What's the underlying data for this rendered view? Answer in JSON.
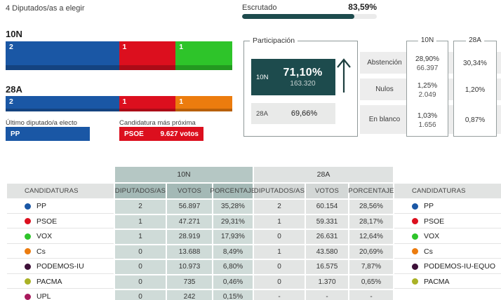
{
  "header": {
    "seats_note": "4 Diputados/as a elegir",
    "escrutado": {
      "label": "Escrutado",
      "value": "83,59%",
      "pct": 83.59,
      "fill_color": "#1d4b4d"
    }
  },
  "seat_bars": {
    "n10": {
      "title": "10N",
      "segments": [
        {
          "party": "PP",
          "seats": "2",
          "color": "#1a57a5",
          "width_pct": 50
        },
        {
          "party": "PSOE",
          "seats": "1",
          "color": "#dc0f1e",
          "width_pct": 25
        },
        {
          "party": "VOX",
          "seats": "1",
          "color": "#2ec42a",
          "width_pct": 25
        }
      ]
    },
    "a28": {
      "title": "28A",
      "segments": [
        {
          "party": "PP",
          "seats": "2",
          "color": "#1a57a5",
          "width_pct": 50
        },
        {
          "party": "PSOE",
          "seats": "1",
          "color": "#dc0f1e",
          "width_pct": 25
        },
        {
          "party": "Cs",
          "seats": "1",
          "color": "#ec7c0e",
          "width_pct": 25
        }
      ]
    }
  },
  "last_elected": {
    "label": "Último diputado/a electo",
    "party": "PP",
    "color": "#1a57a5"
  },
  "closest": {
    "label": "Candidatura más próxima",
    "party": "PSOE",
    "votes": "9.627 votos",
    "color": "#dc0f1e"
  },
  "participation": {
    "title": "Participación",
    "n10": {
      "label": "10N",
      "pct": "71,10%",
      "count": "163.320",
      "box_color": "#1d4b4d"
    },
    "a28": {
      "label": "28A",
      "pct": "69,66%"
    },
    "trend_icon": "up-arrow"
  },
  "stats": {
    "n10_col": "10N",
    "a28_col": "28A",
    "rows": [
      {
        "label": "Abstención",
        "n10_pct": "28,90%",
        "n10_count": "66.397",
        "a28_pct": "30,34%"
      },
      {
        "label": "Nulos",
        "n10_pct": "1,25%",
        "n10_count": "2.049",
        "a28_pct": "1,20%"
      },
      {
        "label": "En blanco",
        "n10_pct": "1,03%",
        "n10_count": "1.656",
        "a28_pct": "0,87%"
      }
    ]
  },
  "table": {
    "cand_header_left": "CANDIDATURAS",
    "cand_header_right": "CANDIDATURAS",
    "group_n10": "10N",
    "group_a28": "28A",
    "cols": {
      "diputados": "DIPUTADOS/AS",
      "votos": "VOTOS",
      "porcentaje": "PORCENTAJE"
    },
    "rows": [
      {
        "name": "PP",
        "color": "#1a57a5",
        "n10_dip": "2",
        "n10_votos": "56.897",
        "n10_pct": "35,28%",
        "a28_dip": "2",
        "a28_votos": "60.154",
        "a28_pct": "28,56%",
        "name_right": "PP",
        "color_right": "#1a57a5"
      },
      {
        "name": "PSOE",
        "color": "#dc0f1e",
        "n10_dip": "1",
        "n10_votos": "47.271",
        "n10_pct": "29,31%",
        "a28_dip": "1",
        "a28_votos": "59.331",
        "a28_pct": "28,17%",
        "name_right": "PSOE",
        "color_right": "#dc0f1e"
      },
      {
        "name": "VOX",
        "color": "#2ec42a",
        "n10_dip": "1",
        "n10_votos": "28.919",
        "n10_pct": "17,93%",
        "a28_dip": "0",
        "a28_votos": "26.631",
        "a28_pct": "12,64%",
        "name_right": "VOX",
        "color_right": "#2ec42a"
      },
      {
        "name": "Cs",
        "color": "#ec7c0e",
        "n10_dip": "0",
        "n10_votos": "13.688",
        "n10_pct": "8,49%",
        "a28_dip": "1",
        "a28_votos": "43.580",
        "a28_pct": "20,69%",
        "name_right": "Cs",
        "color_right": "#ec7c0e"
      },
      {
        "name": "PODEMOS-IU",
        "color": "#3d1038",
        "n10_dip": "0",
        "n10_votos": "10.973",
        "n10_pct": "6,80%",
        "a28_dip": "0",
        "a28_votos": "16.575",
        "a28_pct": "7,87%",
        "name_right": "PODEMOS-IU-EQUO",
        "color_right": "#3d1038"
      },
      {
        "name": "PACMA",
        "color": "#aab226",
        "n10_dip": "0",
        "n10_votos": "735",
        "n10_pct": "0,46%",
        "a28_dip": "0",
        "a28_votos": "1.370",
        "a28_pct": "0,65%",
        "name_right": "PACMA",
        "color_right": "#aab226"
      },
      {
        "name": "UPL",
        "color": "#a8195c",
        "n10_dip": "0",
        "n10_votos": "242",
        "n10_pct": "0,15%",
        "a28_dip": "-",
        "a28_votos": "-",
        "a28_pct": "-",
        "name_right": "",
        "color_right": ""
      }
    ]
  }
}
